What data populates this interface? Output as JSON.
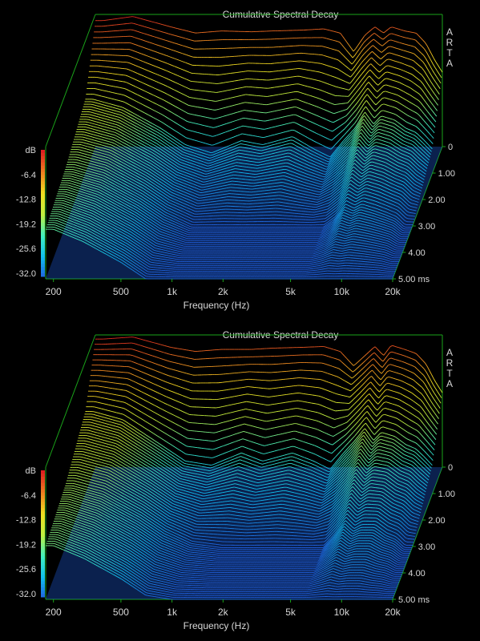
{
  "chart_data": [
    {
      "type": "area",
      "title": "Cumulative Spectral Decay",
      "xlabel": "Frequency (Hz)",
      "ylabel": "dB",
      "zlabel": "ms",
      "brand": "ARTA",
      "x_scale": "log",
      "xlim": [
        180,
        20000
      ],
      "ylim": [
        -32.0,
        0.0
      ],
      "zlim": [
        0,
        5.0
      ],
      "x_ticks": [
        "200",
        "500",
        "1k",
        "2k",
        "5k",
        "10k",
        "20k"
      ],
      "y_ticks": [
        "dB",
        "-6.4",
        "-12.8",
        "-19.2",
        "-25.6",
        "-32.0"
      ],
      "z_ticks": [
        "0",
        "1.00",
        "2.00",
        "3.00",
        "4.00",
        "5.00 ms"
      ],
      "colormap": [
        "#2060e0",
        "#10c0f0",
        "#40f0c0",
        "#c0f040",
        "#f0e020",
        "#f08020",
        "#e02020"
      ],
      "series": [
        {
          "name": "0 ms",
          "x": [
            200,
            300,
            500,
            700,
            1000,
            1500,
            2000,
            3000,
            4000,
            5000,
            6000,
            7000,
            8000,
            9000,
            10000,
            12000,
            14000,
            16000,
            18000,
            20000
          ],
          "values": [
            -1.5,
            -0.5,
            -3.0,
            -4.5,
            -4.0,
            -4.2,
            -4.0,
            -3.8,
            -3.5,
            -4.5,
            -9.0,
            -5.0,
            -3.0,
            -4.5,
            -3.0,
            -4.0,
            -4.5,
            -7.0,
            -11.0,
            -14.0
          ]
        },
        {
          "name": "1.00 ms",
          "x": [
            200,
            300,
            500,
            700,
            1000,
            1500,
            2000,
            3000,
            4000,
            5000,
            6000,
            7000,
            8000,
            9000,
            10000,
            12000,
            14000,
            16000,
            18000,
            20000
          ],
          "values": [
            -14.0,
            -16.0,
            -21.0,
            -25.0,
            -27.0,
            -24.0,
            -25.0,
            -23.0,
            -26.0,
            -28.0,
            -24.0,
            -21.0,
            -17.0,
            -20.0,
            -18.0,
            -19.0,
            -21.0,
            -22.0,
            -24.0,
            -26.0
          ]
        },
        {
          "name": "3.00 ms",
          "x": [
            200,
            300,
            500,
            700,
            1000,
            1500,
            2000,
            3000,
            4000,
            5000,
            6000,
            7000,
            8000,
            9000,
            10000,
            12000,
            14000,
            16000,
            18000,
            20000
          ],
          "values": [
            -18.0,
            -20.0,
            -25.0,
            -29.0,
            -32.0,
            -32.0,
            -32.0,
            -32.0,
            -32.0,
            -32.0,
            -32.0,
            -30.0,
            -27.0,
            -28.0,
            -27.0,
            -28.0,
            -29.0,
            -30.0,
            -32.0,
            -32.0
          ]
        },
        {
          "name": "5.00 ms",
          "x": [
            200,
            300,
            500,
            700,
            1000,
            1500,
            2000,
            3000,
            4000,
            5000,
            6000,
            7000,
            8000,
            9000,
            10000,
            12000,
            14000,
            16000,
            18000,
            20000
          ],
          "values": [
            -20.0,
            -23.0,
            -28.0,
            -32.0,
            -32.0,
            -32.0,
            -32.0,
            -32.0,
            -32.0,
            -32.0,
            -32.0,
            -32.0,
            -32.0,
            -32.0,
            -32.0,
            -32.0,
            -32.0,
            -32.0,
            -32.0,
            -32.0
          ]
        }
      ]
    },
    {
      "type": "area",
      "title": "Cumulative Spectral Decay",
      "xlabel": "Frequency (Hz)",
      "ylabel": "dB",
      "zlabel": "ms",
      "brand": "ARTA",
      "x_scale": "log",
      "xlim": [
        180,
        20000
      ],
      "ylim": [
        -32.0,
        0.0
      ],
      "zlim": [
        0,
        5.0
      ],
      "x_ticks": [
        "200",
        "500",
        "1k",
        "2k",
        "5k",
        "10k",
        "20k"
      ],
      "y_ticks": [
        "dB",
        "-6.4",
        "-12.8",
        "-19.2",
        "-25.6",
        "-32.0"
      ],
      "z_ticks": [
        "0",
        "1.00",
        "2.00",
        "3.00",
        "4.00",
        "5.00 ms"
      ],
      "colormap": [
        "#2060e0",
        "#10c0f0",
        "#40f0c0",
        "#c0f040",
        "#f0e020",
        "#f08020",
        "#e02020"
      ],
      "series": [
        {
          "name": "0 ms",
          "x": [
            200,
            300,
            500,
            700,
            1000,
            1500,
            2000,
            3000,
            4000,
            5000,
            6000,
            7000,
            8000,
            9000,
            10000,
            12000,
            14000,
            16000,
            18000,
            20000
          ],
          "values": [
            -1.0,
            -0.5,
            -3.0,
            -4.0,
            -3.5,
            -3.5,
            -3.2,
            -3.0,
            -2.8,
            -4.0,
            -7.5,
            -5.0,
            -2.8,
            -5.0,
            -2.5,
            -3.5,
            -4.5,
            -7.0,
            -11.0,
            -14.0
          ]
        },
        {
          "name": "1.00 ms",
          "x": [
            200,
            300,
            500,
            700,
            1000,
            1500,
            2000,
            3000,
            4000,
            5000,
            6000,
            7000,
            8000,
            9000,
            10000,
            12000,
            14000,
            16000,
            18000,
            20000
          ],
          "values": [
            -12.0,
            -14.0,
            -20.0,
            -24.0,
            -25.0,
            -22.0,
            -24.0,
            -22.0,
            -24.0,
            -26.0,
            -22.0,
            -19.0,
            -16.0,
            -19.0,
            -17.0,
            -18.0,
            -20.0,
            -21.0,
            -23.0,
            -25.0
          ]
        },
        {
          "name": "3.00 ms",
          "x": [
            200,
            300,
            500,
            700,
            1000,
            1500,
            2000,
            3000,
            4000,
            5000,
            6000,
            7000,
            8000,
            9000,
            10000,
            12000,
            14000,
            16000,
            18000,
            20000
          ],
          "values": [
            -17.0,
            -19.0,
            -24.0,
            -28.0,
            -31.0,
            -32.0,
            -32.0,
            -32.0,
            -32.0,
            -32.0,
            -32.0,
            -29.0,
            -26.0,
            -28.0,
            -27.0,
            -27.0,
            -29.0,
            -30.0,
            -32.0,
            -32.0
          ]
        },
        {
          "name": "5.00 ms",
          "x": [
            200,
            300,
            500,
            700,
            1000,
            1500,
            2000,
            3000,
            4000,
            5000,
            6000,
            7000,
            8000,
            9000,
            10000,
            12000,
            14000,
            16000,
            18000,
            20000
          ],
          "values": [
            -19.0,
            -22.0,
            -27.0,
            -31.0,
            -32.0,
            -32.0,
            -32.0,
            -32.0,
            -32.0,
            -32.0,
            -32.0,
            -32.0,
            -32.0,
            -32.0,
            -32.0,
            -32.0,
            -32.0,
            -32.0,
            -32.0,
            -32.0
          ]
        }
      ]
    }
  ]
}
